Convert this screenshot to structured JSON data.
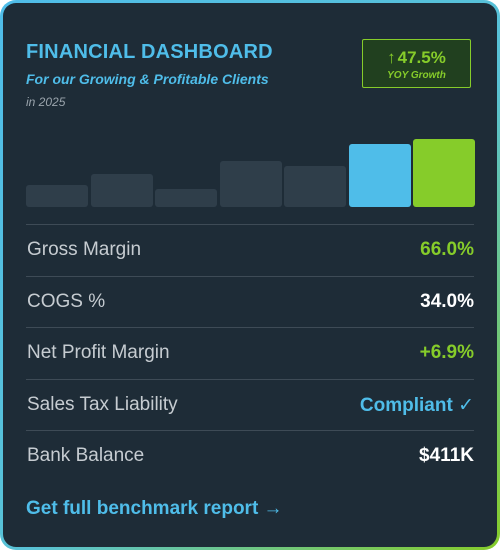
{
  "header": {
    "title": "FINANCIAL DASHBOARD",
    "subtitle": "For our Growing & Profitable Clients",
    "year": "in 2025"
  },
  "growth": {
    "arrow": "↑",
    "value": "47.5%",
    "label": "YOY Growth",
    "color": "#86cc2a"
  },
  "chart_data": {
    "type": "bar",
    "title": "",
    "values": [
      0.31,
      0.47,
      0.26,
      0.66,
      0.58,
      0.9,
      0.97
    ],
    "highlight": [
      false,
      false,
      false,
      false,
      false,
      true,
      true
    ],
    "colors": [
      "#2f3e4a",
      "#2f3e4a",
      "#2f3e4a",
      "#2f3e4a",
      "#2f3e4a",
      "#4fbde9",
      "#86cc2a"
    ],
    "ylim": [
      0,
      1
    ],
    "grid": false
  },
  "metrics": [
    {
      "label": "Gross Margin",
      "value": "66.0%",
      "color": "#86cc2a"
    },
    {
      "label": "COGS %",
      "value": "34.0%",
      "color": "#ffffff"
    },
    {
      "label": "Net Profit Margin",
      "value": "+6.9%",
      "color": "#86cc2a"
    },
    {
      "label": "Sales Tax Liability",
      "value": "Compliant ✓",
      "color": "#4fbde9"
    },
    {
      "label": "Bank Balance",
      "value": "$411K",
      "color": "#ffffff"
    }
  ],
  "cta": {
    "label": "Get full benchmark report →"
  },
  "colors": {
    "accent_blue": "#4fbde9",
    "accent_green": "#86cc2a",
    "background": "#1e2c37"
  }
}
